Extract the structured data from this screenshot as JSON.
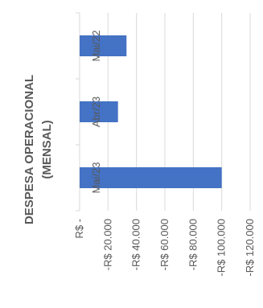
{
  "chart_data": {
    "type": "bar",
    "title_lines": [
      "DESPESA OPERACIONAL",
      "(MENSAL)"
    ],
    "categories": [
      "Mai/23",
      "Abr/23",
      "Mai/22"
    ],
    "values": [
      -100000,
      -27000,
      -33000
    ],
    "xlim": [
      0,
      -120000
    ],
    "tick_labels": [
      "R$ -",
      "-R$ 20.000",
      "-R$ 40.000",
      "-R$ 60.000",
      "-R$ 80.000",
      "-R$ 100.000",
      "-R$ 120.000"
    ],
    "tick_values": [
      0,
      -20000,
      -40000,
      -60000,
      -80000,
      -100000,
      -120000
    ],
    "grid": true,
    "legend": "none",
    "colors": {
      "bar": "#4472C4",
      "grid": "#D9D9D9",
      "text": "#595959"
    }
  }
}
